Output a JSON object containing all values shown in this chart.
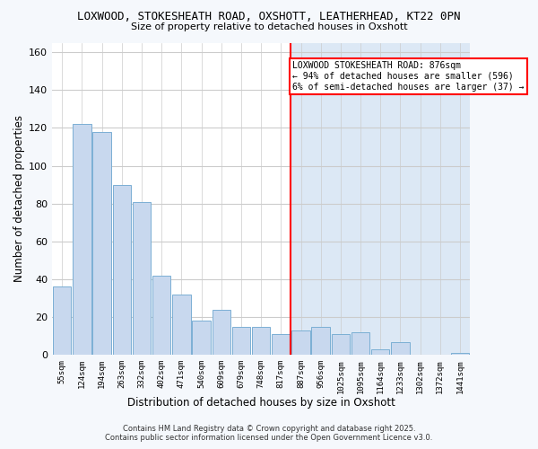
{
  "title_line1": "LOXWOOD, STOKESHEATH ROAD, OXSHOTT, LEATHERHEAD, KT22 0PN",
  "title_line2": "Size of property relative to detached houses in Oxshott",
  "xlabel": "Distribution of detached houses by size in Oxshott",
  "ylabel": "Number of detached properties",
  "bar_labels": [
    "55sqm",
    "124sqm",
    "194sqm",
    "263sqm",
    "332sqm",
    "402sqm",
    "471sqm",
    "540sqm",
    "609sqm",
    "679sqm",
    "748sqm",
    "817sqm",
    "887sqm",
    "956sqm",
    "1025sqm",
    "1095sqm",
    "1164sqm",
    "1233sqm",
    "1302sqm",
    "1372sqm",
    "1441sqm"
  ],
  "bar_values": [
    36,
    122,
    118,
    90,
    81,
    42,
    32,
    18,
    24,
    15,
    15,
    11,
    13,
    15,
    11,
    12,
    3,
    7,
    0,
    0,
    1
  ],
  "bar_color": "#c8d8ee",
  "bar_edge_color": "#7bafd4",
  "vline_x_index": 12,
  "vline_color": "red",
  "annotation_title": "LOXWOOD STOKESHEATH ROAD: 876sqm",
  "annotation_line2": "← 94% of detached houses are smaller (596)",
  "annotation_line3": "6% of semi-detached houses are larger (37) →",
  "ylim": [
    0,
    165
  ],
  "yticks": [
    0,
    20,
    40,
    60,
    80,
    100,
    120,
    140,
    160
  ],
  "plot_bg_left": "#ffffff",
  "plot_bg_right": "#dce8f5",
  "grid_color": "#cccccc",
  "outer_bg": "#f5f8fc",
  "footer_line1": "Contains HM Land Registry data © Crown copyright and database right 2025.",
  "footer_line2": "Contains public sector information licensed under the Open Government Licence v3.0."
}
